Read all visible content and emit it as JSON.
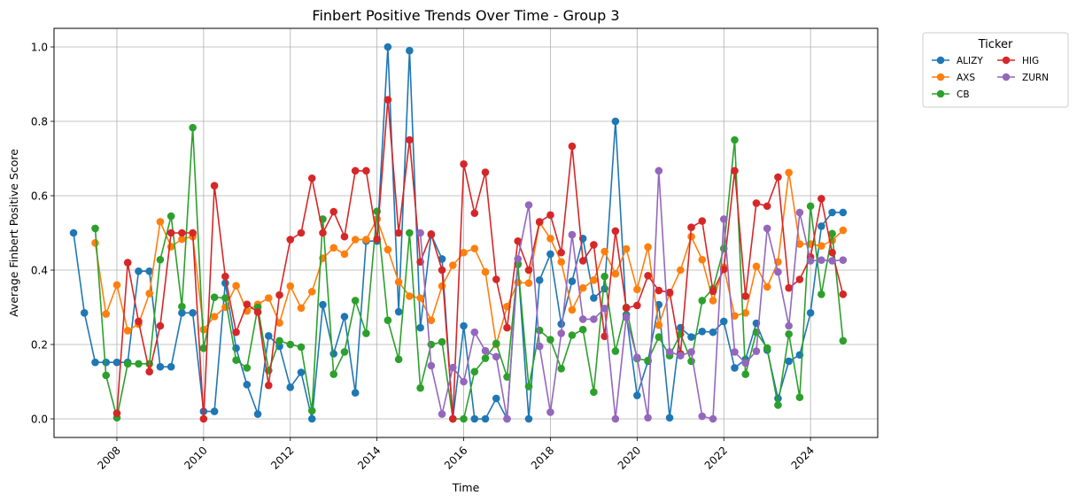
{
  "chart_data": {
    "type": "line",
    "title": "Finbert Positive Trends Over Time - Group 3",
    "xlabel": "Time",
    "ylabel": "Average Finbert Positive Score",
    "xlim": [
      2006.55,
      2025.55
    ],
    "ylim": [
      -0.05,
      1.05
    ],
    "xticks": [
      2008,
      2010,
      2012,
      2014,
      2016,
      2018,
      2020,
      2022,
      2024
    ],
    "xtick_labels": [
      "2008",
      "2010",
      "2012",
      "2014",
      "2016",
      "2018",
      "2020",
      "2022",
      "2024"
    ],
    "yticks": [
      0.0,
      0.2,
      0.4,
      0.6,
      0.8,
      1.0
    ],
    "ytick_labels": [
      "0.0",
      "0.2",
      "0.4",
      "0.6",
      "0.8",
      "1.0"
    ],
    "grid": true,
    "legend": {
      "title": "Ticker",
      "placement": "outside-upper-right",
      "columns": 2
    },
    "series": [
      {
        "name": "ALIZY",
        "color": "#1f77b4",
        "x": [
          2007.0,
          2007.25,
          2007.5,
          2007.75,
          2008.0,
          2008.25,
          2008.5,
          2008.75,
          2009.0,
          2009.25,
          2009.5,
          2009.75,
          2010.0,
          2010.25,
          2010.5,
          2010.75,
          2011.0,
          2011.25,
          2011.5,
          2011.75,
          2012.0,
          2012.25,
          2012.5,
          2012.75,
          2013.0,
          2013.25,
          2013.5,
          2013.75,
          2014.0,
          2014.25,
          2014.5,
          2014.75,
          2015.0,
          2015.25,
          2015.5,
          2015.75,
          2016.0,
          2016.25,
          2016.5,
          2016.75,
          2017.0,
          2017.25,
          2017.5,
          2017.75,
          2018.0,
          2018.25,
          2018.5,
          2018.75,
          2019.0,
          2019.25,
          2019.5,
          2019.75,
          2020.0,
          2020.25,
          2020.5,
          2020.75,
          2021.0,
          2021.25,
          2021.5,
          2021.75,
          2022.0,
          2022.25,
          2022.5,
          2022.75,
          2023.0,
          2023.25,
          2023.5,
          2023.75,
          2024.0,
          2024.25,
          2024.5,
          2024.75
        ],
        "y": [
          0.5,
          0.285,
          0.152,
          0.152,
          0.152,
          0.152,
          0.397,
          0.397,
          0.14,
          0.14,
          0.285,
          0.285,
          0.02,
          0.02,
          0.365,
          0.19,
          0.092,
          0.013,
          0.223,
          0.195,
          0.085,
          0.125,
          0.0,
          0.307,
          0.175,
          0.275,
          0.07,
          0.478,
          0.478,
          1.0,
          0.288,
          0.99,
          0.245,
          0.495,
          0.43,
          0.0,
          0.25,
          0.0,
          0.0,
          0.055,
          0.0,
          0.417,
          0.0,
          0.373,
          0.443,
          0.255,
          0.37,
          0.485,
          0.325,
          0.35,
          0.8,
          0.28,
          0.063,
          0.155,
          0.307,
          0.003,
          0.245,
          0.22,
          0.235,
          0.233,
          0.262,
          0.137,
          0.16,
          0.257,
          0.185,
          0.055,
          0.155,
          0.172,
          0.285,
          0.518,
          0.555,
          0.555
        ]
      },
      {
        "name": "AXS",
        "color": "#ff7f0e",
        "x": [
          2007.5,
          2007.75,
          2008.0,
          2008.25,
          2008.5,
          2008.75,
          2009.0,
          2009.25,
          2009.5,
          2009.75,
          2010.0,
          2010.25,
          2010.5,
          2010.75,
          2011.0,
          2011.25,
          2011.5,
          2011.75,
          2012.0,
          2012.25,
          2012.5,
          2012.75,
          2013.0,
          2013.25,
          2013.5,
          2013.75,
          2014.0,
          2014.25,
          2014.5,
          2014.75,
          2015.0,
          2015.25,
          2015.5,
          2015.75,
          2016.0,
          2016.25,
          2016.5,
          2016.75,
          2017.0,
          2017.25,
          2017.5,
          2017.75,
          2018.0,
          2018.25,
          2018.5,
          2018.75,
          2019.0,
          2019.25,
          2019.5,
          2019.75,
          2020.0,
          2020.25,
          2020.5,
          2020.75,
          2021.0,
          2021.25,
          2021.5,
          2021.75,
          2022.0,
          2022.25,
          2022.5,
          2022.75,
          2023.0,
          2023.25,
          2023.5,
          2023.75,
          2024.0,
          2024.25,
          2024.5,
          2024.75
        ],
        "y": [
          0.473,
          0.282,
          0.36,
          0.237,
          0.255,
          0.337,
          0.53,
          0.463,
          0.483,
          0.49,
          0.24,
          0.275,
          0.3,
          0.358,
          0.29,
          0.308,
          0.325,
          0.258,
          0.357,
          0.298,
          0.342,
          0.432,
          0.46,
          0.443,
          0.482,
          0.482,
          0.537,
          0.455,
          0.368,
          0.33,
          0.325,
          0.265,
          0.357,
          0.413,
          0.447,
          0.458,
          0.395,
          0.2,
          0.302,
          0.367,
          0.365,
          0.528,
          0.485,
          0.422,
          0.293,
          0.352,
          0.373,
          0.45,
          0.39,
          0.457,
          0.348,
          0.462,
          0.252,
          0.337,
          0.4,
          0.49,
          0.428,
          0.318,
          0.408,
          0.277,
          0.285,
          0.41,
          0.355,
          0.422,
          0.662,
          0.47,
          0.47,
          0.465,
          0.48,
          0.507
        ]
      },
      {
        "name": "CB",
        "color": "#2ca02c",
        "x": [
          2007.5,
          2007.75,
          2008.0,
          2008.25,
          2008.5,
          2008.75,
          2009.0,
          2009.25,
          2009.5,
          2009.75,
          2010.0,
          2010.25,
          2010.5,
          2010.75,
          2011.0,
          2011.25,
          2011.5,
          2011.75,
          2012.0,
          2012.25,
          2012.5,
          2012.75,
          2013.0,
          2013.25,
          2013.5,
          2013.75,
          2014.0,
          2014.25,
          2014.5,
          2014.75,
          2015.0,
          2015.25,
          2015.5,
          2015.75,
          2016.0,
          2016.25,
          2016.5,
          2016.75,
          2017.0,
          2017.25,
          2017.5,
          2017.75,
          2018.0,
          2018.25,
          2018.5,
          2018.75,
          2019.0,
          2019.25,
          2019.5,
          2019.75,
          2020.0,
          2020.25,
          2020.5,
          2020.75,
          2021.0,
          2021.25,
          2021.5,
          2021.75,
          2022.0,
          2022.25,
          2022.5,
          2022.75,
          2023.0,
          2023.25,
          2023.5,
          2023.75,
          2024.0,
          2024.25,
          2024.5,
          2024.75
        ],
        "y": [
          0.512,
          0.117,
          0.003,
          0.148,
          0.148,
          0.148,
          0.428,
          0.545,
          0.302,
          0.783,
          0.19,
          0.327,
          0.325,
          0.158,
          0.137,
          0.3,
          0.13,
          0.21,
          0.2,
          0.193,
          0.022,
          0.537,
          0.12,
          0.18,
          0.318,
          0.23,
          0.558,
          0.265,
          0.16,
          0.5,
          0.083,
          0.2,
          0.207,
          0.0,
          0.0,
          0.127,
          0.163,
          0.203,
          0.113,
          0.415,
          0.087,
          0.238,
          0.213,
          0.135,
          0.225,
          0.24,
          0.072,
          0.383,
          0.182,
          0.3,
          0.162,
          0.157,
          0.22,
          0.17,
          0.228,
          0.155,
          0.318,
          0.35,
          0.458,
          0.75,
          0.12,
          0.233,
          0.19,
          0.037,
          0.228,
          0.058,
          0.572,
          0.335,
          0.498,
          0.21
        ]
      },
      {
        "name": "HIG",
        "color": "#d62728",
        "x": [
          2008.0,
          2008.25,
          2008.5,
          2008.75,
          2009.0,
          2009.25,
          2009.5,
          2009.75,
          2010.0,
          2010.25,
          2010.5,
          2010.75,
          2011.0,
          2011.25,
          2011.5,
          2011.75,
          2012.0,
          2012.25,
          2012.5,
          2012.75,
          2013.0,
          2013.25,
          2013.5,
          2013.75,
          2014.0,
          2014.25,
          2014.5,
          2014.75,
          2015.0,
          2015.25,
          2015.5,
          2015.75,
          2016.0,
          2016.25,
          2016.5,
          2016.75,
          2017.0,
          2017.25,
          2017.5,
          2017.75,
          2018.0,
          2018.25,
          2018.5,
          2018.75,
          2019.0,
          2019.25,
          2019.5,
          2019.75,
          2020.0,
          2020.25,
          2020.5,
          2020.75,
          2021.0,
          2021.25,
          2021.5,
          2021.75,
          2022.0,
          2022.25,
          2022.5,
          2022.75,
          2023.0,
          2023.25,
          2023.5,
          2023.75,
          2024.0,
          2024.25,
          2024.5,
          2024.75
        ],
        "y": [
          0.015,
          0.42,
          0.262,
          0.127,
          0.25,
          0.5,
          0.5,
          0.5,
          0.0,
          0.627,
          0.383,
          0.233,
          0.308,
          0.287,
          0.09,
          0.333,
          0.482,
          0.5,
          0.647,
          0.5,
          0.557,
          0.49,
          0.667,
          0.667,
          0.483,
          0.858,
          0.5,
          0.75,
          0.422,
          0.497,
          0.4,
          0.0,
          0.685,
          0.553,
          0.663,
          0.375,
          0.245,
          0.478,
          0.4,
          0.53,
          0.548,
          0.447,
          0.733,
          0.425,
          0.468,
          0.222,
          0.505,
          0.298,
          0.305,
          0.385,
          0.345,
          0.34,
          0.175,
          0.515,
          0.532,
          0.343,
          0.402,
          0.667,
          0.33,
          0.58,
          0.572,
          0.65,
          0.352,
          0.375,
          0.435,
          0.592,
          0.447,
          0.335
        ]
      },
      {
        "name": "ZURN",
        "color": "#9467bd",
        "x": [
          2015.0,
          2015.25,
          2015.5,
          2015.75,
          2016.0,
          2016.25,
          2016.5,
          2016.75,
          2017.0,
          2017.25,
          2017.5,
          2017.75,
          2018.0,
          2018.25,
          2018.5,
          2018.75,
          2019.0,
          2019.25,
          2019.5,
          2019.75,
          2020.0,
          2020.25,
          2020.5,
          2020.75,
          2021.0,
          2021.25,
          2021.5,
          2021.75,
          2022.0,
          2022.25,
          2022.5,
          2022.75,
          2023.0,
          2023.25,
          2023.5,
          2023.75,
          2024.0,
          2024.25,
          2024.5,
          2024.75
        ],
        "y": [
          0.5,
          0.143,
          0.013,
          0.138,
          0.1,
          0.233,
          0.183,
          0.167,
          0.0,
          0.43,
          0.575,
          0.195,
          0.018,
          0.23,
          0.495,
          0.268,
          0.268,
          0.297,
          0.0,
          0.273,
          0.165,
          0.003,
          0.667,
          0.18,
          0.17,
          0.18,
          0.007,
          0.0,
          0.537,
          0.18,
          0.15,
          0.182,
          0.512,
          0.395,
          0.25,
          0.555,
          0.425,
          0.427,
          0.425,
          0.427
        ]
      }
    ]
  }
}
